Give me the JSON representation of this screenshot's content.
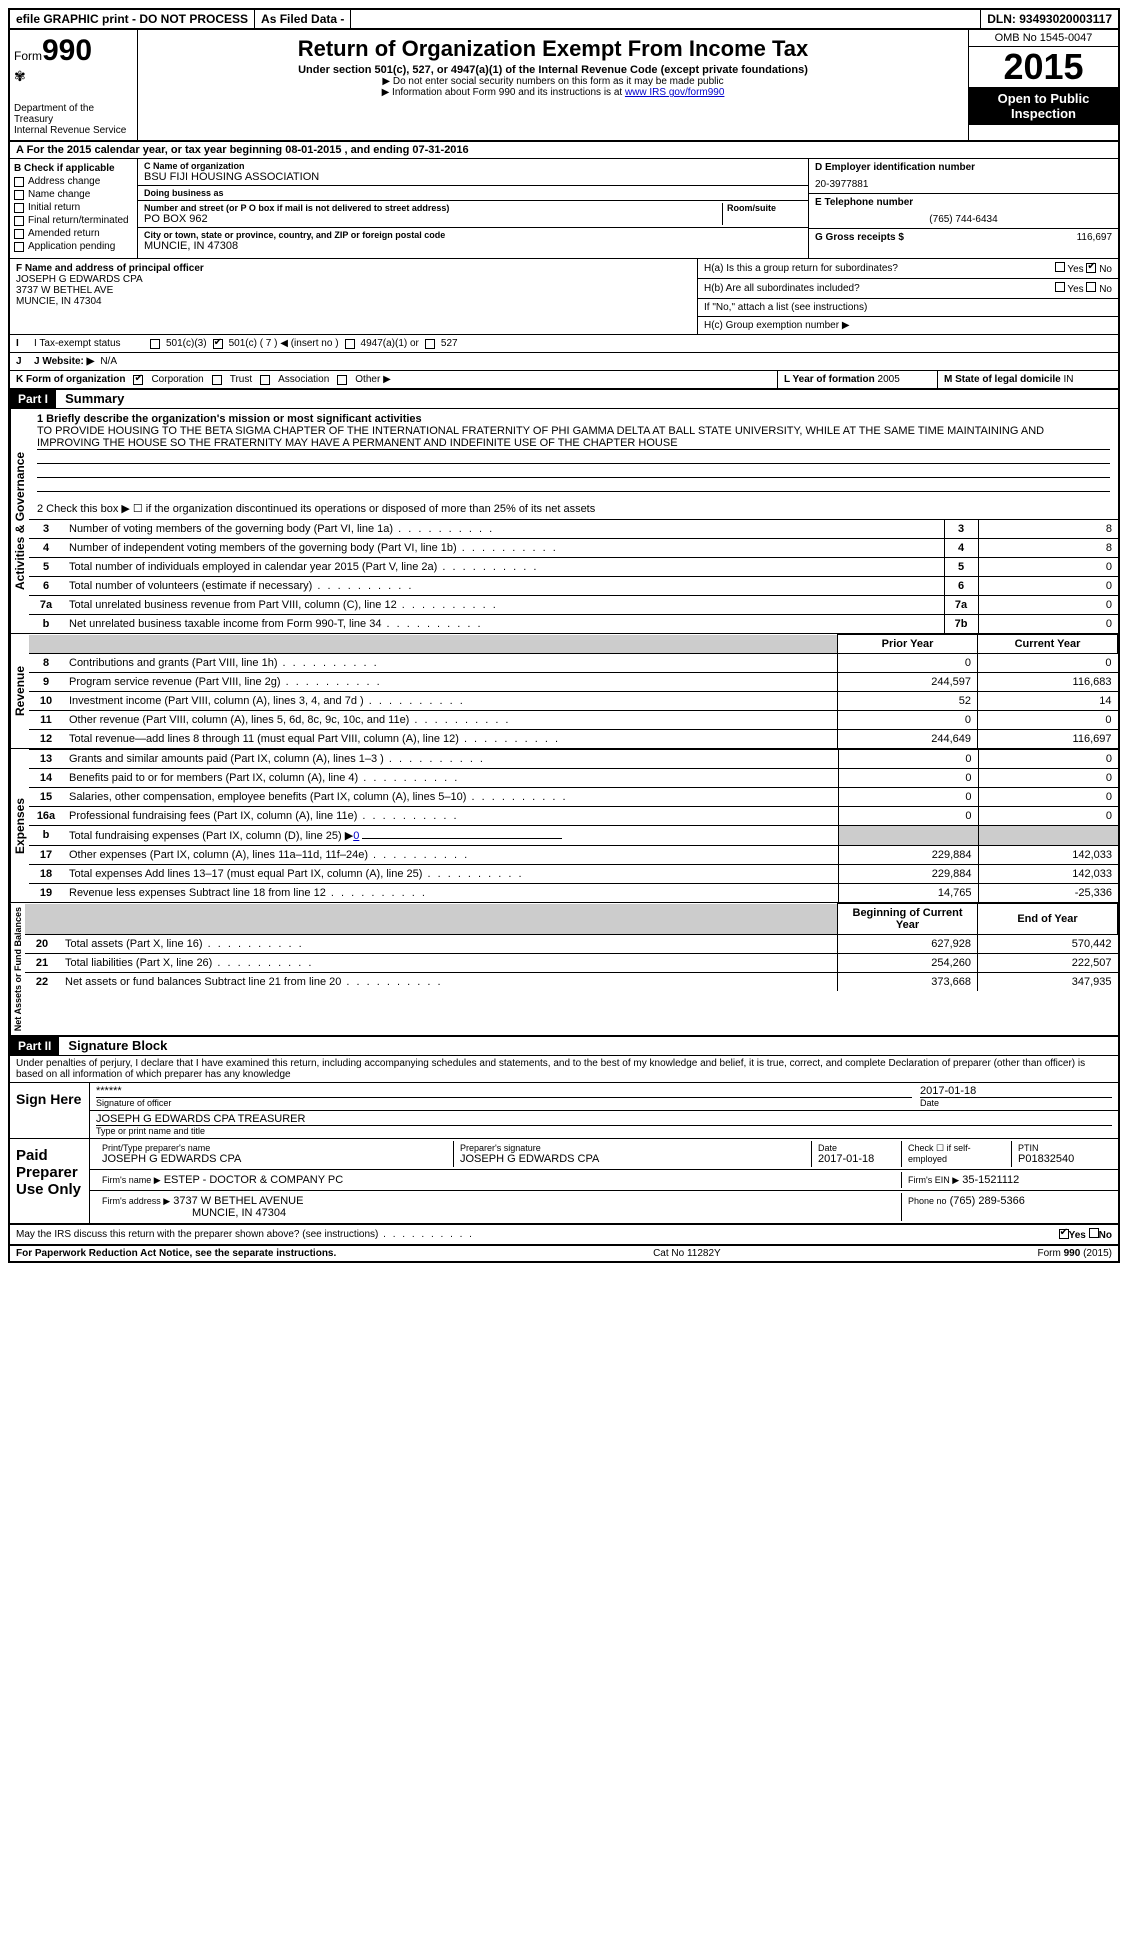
{
  "topbar": {
    "efile": "efile GRAPHIC print - DO NOT PROCESS",
    "asfiled": "As Filed Data -",
    "dln_label": "DLN:",
    "dln": "93493020003117"
  },
  "header": {
    "form_label": "Form",
    "form_no": "990",
    "dept": "Department of the Treasury",
    "irs": "Internal Revenue Service",
    "title": "Return of Organization Exempt From Income Tax",
    "subtitle": "Under section 501(c), 527, or 4947(a)(1) of the Internal Revenue Code (except private foundations)",
    "note1": "▶ Do not enter social security numbers on this form as it may be made public",
    "note2_pre": "▶ Information about Form 990 and its instructions is at ",
    "note2_link": "www IRS gov/form990",
    "omb": "OMB No 1545-0047",
    "year": "2015",
    "inspect1": "Open to Public",
    "inspect2": "Inspection"
  },
  "rowA": {
    "text_pre": "A  For the 2015 calendar year, or tax year beginning ",
    "begin": "08-01-2015",
    "mid": " , and ending ",
    "end": "07-31-2016"
  },
  "B": {
    "label": "B Check if applicable",
    "opts": [
      "Address change",
      "Name change",
      "Initial return",
      "Final return/terminated",
      "Amended return",
      "Application pending"
    ]
  },
  "C": {
    "name_label": "C Name of organization",
    "name": "BSU FIJI HOUSING ASSOCIATION",
    "dba_label": "Doing business as",
    "dba": "",
    "addr_label": "Number and street (or P O box if mail is not delivered to street address)",
    "room_label": "Room/suite",
    "addr": "PO BOX 962",
    "city_label": "City or town, state or province, country, and ZIP or foreign postal code",
    "city": "MUNCIE, IN  47308"
  },
  "D": {
    "label": "D Employer identification number",
    "val": "20-3977881"
  },
  "E": {
    "label": "E Telephone number",
    "val": "(765) 744-6434"
  },
  "G": {
    "label": "G Gross receipts $",
    "val": "116,697"
  },
  "F": {
    "label": "F Name and address of principal officer",
    "line1": "JOSEPH G EDWARDS CPA",
    "line2": "3737 W BETHEL AVE",
    "line3": "MUNCIE, IN  47304"
  },
  "H": {
    "a": "H(a)  Is this a group return for subordinates?",
    "a_ans_yes": "Yes",
    "a_ans_no": "No",
    "b": "H(b)  Are all subordinates included?",
    "b_yes": "Yes",
    "b_no": "No",
    "b_note": "If \"No,\" attach a list  (see instructions)",
    "c": "H(c)  Group exemption number ▶"
  },
  "I": {
    "label": "I  Tax-exempt status",
    "o1": "501(c)(3)",
    "o2": "501(c) ( 7 ) ◀ (insert no )",
    "o3": "4947(a)(1) or",
    "o4": "527"
  },
  "J": {
    "label": "J  Website: ▶",
    "val": "N/A"
  },
  "K": {
    "label": "K Form of organization",
    "o1": "Corporation",
    "o2": "Trust",
    "o3": "Association",
    "o4": "Other ▶"
  },
  "L": {
    "label": "L Year of formation",
    "val": "2005"
  },
  "M": {
    "label": "M State of legal domicile",
    "val": "IN"
  },
  "partI": {
    "hdr": "Part I",
    "title": "Summary",
    "q1_label": "1 Briefly describe the organization's mission or most significant activities",
    "mission": "TO PROVIDE HOUSING TO THE BETA SIGMA CHAPTER OF THE INTERNATIONAL FRATERNITY OF PHI GAMMA DELTA AT BALL STATE UNIVERSITY, WHILE AT THE SAME TIME MAINTAINING AND IMPROVING THE HOUSE SO THE FRATERNITY MAY HAVE A PERMANENT AND INDEFINITE USE OF THE CHAPTER HOUSE",
    "q2": "2  Check this box ▶ ☐ if the organization discontinued its operations or disposed of more than 25% of its net assets",
    "vert_gov": "Activities & Governance",
    "vert_rev": "Revenue",
    "vert_exp": "Expenses",
    "vert_net": "Net Assets or Fund Balances",
    "lines_gov": [
      {
        "n": "3",
        "t": "Number of voting members of the governing body (Part VI, line 1a)",
        "c": "3",
        "v": "8"
      },
      {
        "n": "4",
        "t": "Number of independent voting members of the governing body (Part VI, line 1b)",
        "c": "4",
        "v": "8"
      },
      {
        "n": "5",
        "t": "Total number of individuals employed in calendar year 2015 (Part V, line 2a)",
        "c": "5",
        "v": "0"
      },
      {
        "n": "6",
        "t": "Total number of volunteers (estimate if necessary)",
        "c": "6",
        "v": "0"
      },
      {
        "n": "7a",
        "t": "Total unrelated business revenue from Part VIII, column (C), line 12",
        "c": "7a",
        "v": "0"
      },
      {
        "n": "b",
        "t": "Net unrelated business taxable income from Form 990-T, line 34",
        "c": "7b",
        "v": "0"
      }
    ],
    "col_hdr_prior": "Prior Year",
    "col_hdr_curr": "Current Year",
    "lines_rev": [
      {
        "n": "8",
        "t": "Contributions and grants (Part VIII, line 1h)",
        "p": "0",
        "c": "0"
      },
      {
        "n": "9",
        "t": "Program service revenue (Part VIII, line 2g)",
        "p": "244,597",
        "c": "116,683"
      },
      {
        "n": "10",
        "t": "Investment income (Part VIII, column (A), lines 3, 4, and 7d )",
        "p": "52",
        "c": "14"
      },
      {
        "n": "11",
        "t": "Other revenue (Part VIII, column (A), lines 5, 6d, 8c, 9c, 10c, and 11e)",
        "p": "0",
        "c": "0"
      },
      {
        "n": "12",
        "t": "Total revenue—add lines 8 through 11 (must equal Part VIII, column (A), line 12)",
        "p": "244,649",
        "c": "116,697"
      }
    ],
    "lines_exp": [
      {
        "n": "13",
        "t": "Grants and similar amounts paid (Part IX, column (A), lines 1–3 )",
        "p": "0",
        "c": "0"
      },
      {
        "n": "14",
        "t": "Benefits paid to or for members (Part IX, column (A), line 4)",
        "p": "0",
        "c": "0"
      },
      {
        "n": "15",
        "t": "Salaries, other compensation, employee benefits (Part IX, column (A), lines 5–10)",
        "p": "0",
        "c": "0"
      },
      {
        "n": "16a",
        "t": "Professional fundraising fees (Part IX, column (A), line 11e)",
        "p": "0",
        "c": "0"
      }
    ],
    "line_b": {
      "n": "b",
      "t": "Total fundraising expenses (Part IX, column (D), line 25) ▶",
      "link": "0"
    },
    "lines_exp2": [
      {
        "n": "17",
        "t": "Other expenses (Part IX, column (A), lines 11a–11d, 11f–24e)",
        "p": "229,884",
        "c": "142,033"
      },
      {
        "n": "18",
        "t": "Total expenses Add lines 13–17 (must equal Part IX, column (A), line 25)",
        "p": "229,884",
        "c": "142,033"
      },
      {
        "n": "19",
        "t": "Revenue less expenses Subtract line 18 from line 12",
        "p": "14,765",
        "c": "-25,336"
      }
    ],
    "col_hdr_begin": "Beginning of Current Year",
    "col_hdr_end": "End of Year",
    "lines_net": [
      {
        "n": "20",
        "t": "Total assets (Part X, line 16)",
        "p": "627,928",
        "c": "570,442"
      },
      {
        "n": "21",
        "t": "Total liabilities (Part X, line 26)",
        "p": "254,260",
        "c": "222,507"
      },
      {
        "n": "22",
        "t": "Net assets or fund balances Subtract line 21 from line 20",
        "p": "373,668",
        "c": "347,935"
      }
    ]
  },
  "partII": {
    "hdr": "Part II",
    "title": "Signature Block",
    "perjury": "Under penalties of perjury, I declare that I have examined this return, including accompanying schedules and statements, and to the best of my knowledge and belief, it is true, correct, and complete  Declaration of preparer (other than officer) is based on all information of which preparer has any knowledge",
    "sign_here": "Sign Here",
    "sig_stars": "******",
    "sig_officer_label": "Signature of officer",
    "sig_date": "2017-01-18",
    "date_label": "Date",
    "officer_name": "JOSEPH G EDWARDS CPA TREASURER",
    "officer_name_label": "Type or print name and title",
    "paid": "Paid Preparer Use Only",
    "prep_name_label": "Print/Type preparer's name",
    "prep_name": "JOSEPH G EDWARDS CPA",
    "prep_sig_label": "Preparer's signature",
    "prep_sig": "JOSEPH G EDWARDS CPA",
    "prep_date_label": "Date",
    "prep_date": "2017-01-18",
    "check_self": "Check ☐ if self-employed",
    "ptin_label": "PTIN",
    "ptin": "P01832540",
    "firm_name_label": "Firm's name    ▶",
    "firm_name": "ESTEP - DOCTOR & COMPANY PC",
    "firm_ein_label": "Firm's EIN ▶",
    "firm_ein": "35-1521112",
    "firm_addr_label": "Firm's address ▶",
    "firm_addr1": "3737 W BETHEL AVENUE",
    "firm_addr2": "MUNCIE, IN  47304",
    "phone_label": "Phone no",
    "phone": "(765) 289-5366",
    "discuss": "May the IRS discuss this return with the preparer shown above? (see instructions)",
    "discuss_yes": "Yes",
    "discuss_no": "No"
  },
  "footer": {
    "pra": "For Paperwork Reduction Act Notice, see the separate instructions.",
    "cat": "Cat No 11282Y",
    "form": "Form 990 (2015)"
  }
}
